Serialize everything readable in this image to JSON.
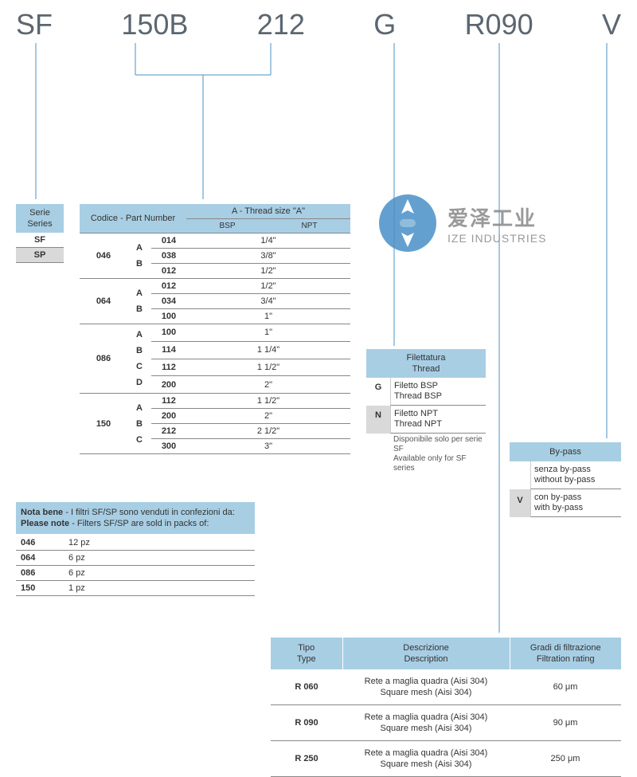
{
  "colors": {
    "header_bg": "#a8cee4",
    "sel_bg": "#d9d9d9",
    "border": "#888888",
    "text": "#333333",
    "code_text": "#5b6670",
    "logo_blue": "#4a90c7",
    "logo_grey": "#888888"
  },
  "code_parts": {
    "p1": "SF",
    "p2": "150B",
    "p3": "212",
    "p4": "G",
    "p5": "R090",
    "p6": "V"
  },
  "serie": {
    "head_it": "Serie",
    "head_en": "Series",
    "rows": [
      {
        "v": "SF",
        "sel": false
      },
      {
        "v": "SP",
        "sel": true
      }
    ]
  },
  "pn": {
    "head_codice": "Codice - Part Number",
    "head_thread": "A - Thread size \"A\"",
    "head_bsp": "BSP",
    "head_npt": "NPT",
    "groups": [
      {
        "code": "046",
        "letters": "A B",
        "rows": [
          {
            "c": "014",
            "t": "1/4\""
          },
          {
            "c": "038",
            "t": "3/8\""
          },
          {
            "c": "012",
            "t": "1/2\""
          }
        ]
      },
      {
        "code": "064",
        "letters": "A B",
        "rows": [
          {
            "c": "012",
            "t": "1/2\""
          },
          {
            "c": "034",
            "t": "3/4\""
          },
          {
            "c": "100",
            "t": "1\""
          }
        ]
      },
      {
        "code": "086",
        "letters": "A B C D",
        "rows": [
          {
            "c": "100",
            "t": "1\""
          },
          {
            "c": "114",
            "t": "1 1/4\""
          },
          {
            "c": "112",
            "t": "1 1/2\""
          },
          {
            "c": "200",
            "t": "2\""
          }
        ]
      },
      {
        "code": "150",
        "letters": "A B C",
        "rows": [
          {
            "c": "112",
            "t": "1 1/2\""
          },
          {
            "c": "200",
            "t": "2\""
          },
          {
            "c": "212",
            "t": "2 1/2\""
          },
          {
            "c": "300",
            "t": "3\""
          }
        ]
      }
    ]
  },
  "thread": {
    "head_it": "Filettatura",
    "head_en": "Thread",
    "rows": [
      {
        "k": "G",
        "it": "Filetto BSP",
        "en": "Thread BSP",
        "sel": false
      },
      {
        "k": "N",
        "it": "Filetto NPT",
        "en": "Thread NPT",
        "sel": true
      }
    ],
    "note_it": "Disponibile solo per serie SF",
    "note_en": "Available only for SF series"
  },
  "bypass": {
    "head": "By-pass",
    "rows": [
      {
        "k": "",
        "it": "senza by-pass",
        "en": "without by-pass",
        "sel": false
      },
      {
        "k": "V",
        "it": "con by-pass",
        "en": "with by-pass",
        "sel": true
      }
    ]
  },
  "nota": {
    "head_it_b": "Nota bene",
    "head_it": "- I filtri SF/SP sono venduti in confezioni da:",
    "head_en_b": "Please note",
    "head_en": "- Filters SF/SP are sold in packs of:",
    "rows": [
      {
        "c": "046",
        "q": "12 pz"
      },
      {
        "c": "064",
        "q": "6 pz"
      },
      {
        "c": "086",
        "q": "6 pz"
      },
      {
        "c": "150",
        "q": "1 pz"
      }
    ]
  },
  "filt": {
    "h1_it": "Tipo",
    "h1_en": "Type",
    "h2_it": "Descrizione",
    "h2_en": "Description",
    "h3_it": "Gradi di filtrazione",
    "h3_en": "Filtration rating",
    "rows": [
      {
        "type": "R 060",
        "desc_it": "Rete a maglia quadra (Aisi 304)",
        "desc_en": "Square mesh (Aisi 304)",
        "rate": "60 μm"
      },
      {
        "type": "R 090",
        "desc_it": "Rete a maglia quadra (Aisi 304)",
        "desc_en": "Square mesh (Aisi 304)",
        "rate": "90 μm"
      },
      {
        "type": "R 250",
        "desc_it": "Rete a maglia quadra (Aisi 304)",
        "desc_en": "Square mesh (Aisi 304)",
        "rate": "250 μm"
      }
    ]
  },
  "logo": {
    "cn": "爱泽工业",
    "en": "IZE INDUSTRIES"
  }
}
